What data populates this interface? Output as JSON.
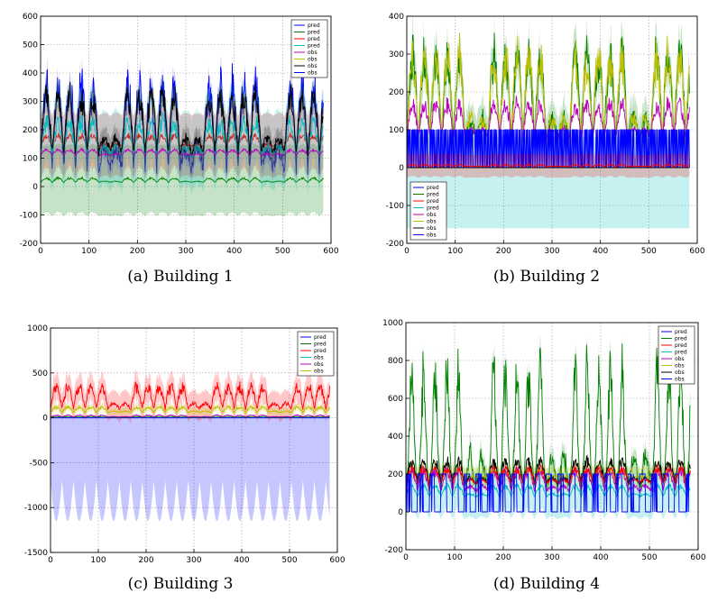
{
  "chart_data": [
    {
      "type": "line",
      "caption": "(a) Building 1",
      "xlim": [
        0,
        600
      ],
      "ylim": [
        -200,
        600
      ],
      "xticks": [
        0,
        100,
        200,
        300,
        400,
        500,
        600
      ],
      "yticks": [
        -200,
        -100,
        0,
        100,
        200,
        300,
        400,
        500,
        600
      ],
      "grid": true,
      "legend": {
        "placement": "top-right",
        "entries": [
          {
            "label": "pred",
            "color": "#0000ff"
          },
          {
            "label": "pred",
            "color": "#008000"
          },
          {
            "label": "pred",
            "color": "#ff0000"
          },
          {
            "label": "pred",
            "color": "#00bfbf"
          },
          {
            "label": "obs",
            "color": "#bf00bf"
          },
          {
            "label": "obs",
            "color": "#bfbf00"
          },
          {
            "label": "obs",
            "color": "#000000"
          },
          {
            "label": "obs",
            "color": "#0000ff"
          }
        ]
      },
      "n_points": 585,
      "series": [
        {
          "label": "pred",
          "color": "#0000ff",
          "base": 60,
          "amp": 300,
          "period": 24,
          "band": 40
        },
        {
          "label": "pred",
          "color": "#008000",
          "base": 15,
          "amp": 15,
          "period": 24,
          "band": 120
        },
        {
          "label": "pred",
          "color": "#ff0000",
          "base": 140,
          "amp": 40,
          "period": 24,
          "band": 110
        },
        {
          "label": "pred",
          "color": "#00bfbf",
          "base": 110,
          "amp": 120,
          "period": 24,
          "band": 130
        },
        {
          "label": "obs",
          "color": "#bf00bf",
          "base": 110,
          "amp": 20,
          "period": 24,
          "band": 0
        },
        {
          "label": "obs",
          "color": "#000000",
          "base": 120,
          "amp": 200,
          "period": 24,
          "band": 40
        }
      ]
    },
    {
      "type": "line",
      "caption": "(b) Building 2",
      "xlim": [
        0,
        600
      ],
      "ylim": [
        -200,
        400
      ],
      "xticks": [
        0,
        100,
        200,
        300,
        400,
        500,
        600
      ],
      "yticks": [
        -200,
        -100,
        0,
        100,
        200,
        300,
        400
      ],
      "grid": true,
      "legend": {
        "placement": "bottom-left",
        "entries": [
          {
            "label": "pred",
            "color": "#0000ff"
          },
          {
            "label": "pred",
            "color": "#008000"
          },
          {
            "label": "pred",
            "color": "#ff0000"
          },
          {
            "label": "pred",
            "color": "#00bfbf"
          },
          {
            "label": "obs",
            "color": "#bf00bf"
          },
          {
            "label": "obs",
            "color": "#bfbf00"
          },
          {
            "label": "obs",
            "color": "#000000"
          },
          {
            "label": "obs",
            "color": "#0000ff"
          }
        ]
      },
      "n_points": 585,
      "series": [
        {
          "label": "pred",
          "color": "#00bfbf",
          "base": 0,
          "amp": 0,
          "period": 24,
          "band": 120,
          "band_center": -40
        },
        {
          "label": "pred",
          "color": "#008000",
          "base": 70,
          "amp": 230,
          "period": 24,
          "band": 50
        },
        {
          "label": "obs",
          "color": "#bfbf00",
          "base": 70,
          "amp": 230,
          "period": 24,
          "band": 0
        },
        {
          "label": "pred",
          "color": "#bf00bf",
          "base": 80,
          "amp": 90,
          "period": 24,
          "band": 0
        },
        {
          "label": "pred",
          "color": "#0000ff",
          "base": 0,
          "amp": 100,
          "period": 3,
          "band": 0,
          "square": true
        },
        {
          "label": "pred",
          "color": "#ff0000",
          "base": 3,
          "amp": 5,
          "period": 24,
          "band": 30
        },
        {
          "label": "obs",
          "color": "#000000",
          "base": 0,
          "amp": 0,
          "period": 24,
          "band": 0
        }
      ]
    },
    {
      "type": "line",
      "caption": "(c) Building 3",
      "xlim": [
        0,
        600
      ],
      "ylim": [
        -1500,
        1000
      ],
      "xticks": [
        0,
        100,
        200,
        300,
        400,
        500,
        600
      ],
      "yticks": [
        -1500,
        -1000,
        -500,
        0,
        500,
        1000
      ],
      "grid": true,
      "legend": {
        "placement": "top-right",
        "entries": [
          {
            "label": "pred",
            "color": "#0000ff"
          },
          {
            "label": "pred",
            "color": "#008000"
          },
          {
            "label": "pred",
            "color": "#ff0000"
          },
          {
            "label": "obs",
            "color": "#00bfbf"
          },
          {
            "label": "obs",
            "color": "#bf00bf"
          },
          {
            "label": "obs",
            "color": "#bfbf00"
          }
        ]
      },
      "n_points": 585,
      "series": [
        {
          "label": "pred",
          "color": "#0000ff",
          "base": 0,
          "amp": 0,
          "period": 24,
          "band": 350,
          "band_center": -350,
          "band_amp": 450
        },
        {
          "label": "pred",
          "color": "#ff0000",
          "base": 100,
          "amp": 250,
          "period": 24,
          "band": 150
        },
        {
          "label": "obs",
          "color": "#bfbf00",
          "base": 60,
          "amp": 60,
          "period": 24,
          "band": 40
        },
        {
          "label": "obs",
          "color": "#008000",
          "base": 5,
          "amp": 10,
          "period": 24,
          "band": 0
        },
        {
          "label": "obs",
          "color": "#bf00bf",
          "base": 10,
          "amp": 20,
          "period": 24,
          "band": 0
        }
      ]
    },
    {
      "type": "line",
      "caption": "(d) Building 4",
      "xlim": [
        0,
        600
      ],
      "ylim": [
        -200,
        1000
      ],
      "xticks": [
        0,
        100,
        200,
        300,
        400,
        500,
        600
      ],
      "yticks": [
        -200,
        0,
        200,
        400,
        600,
        800,
        1000
      ],
      "grid": true,
      "legend": {
        "placement": "top-right",
        "entries": [
          {
            "label": "pred",
            "color": "#0000ff"
          },
          {
            "label": "pred",
            "color": "#008000"
          },
          {
            "label": "pred",
            "color": "#ff0000"
          },
          {
            "label": "pred",
            "color": "#00bfbf"
          },
          {
            "label": "obs",
            "color": "#bf00bf"
          },
          {
            "label": "obs",
            "color": "#bfbf00"
          },
          {
            "label": "obs",
            "color": "#000000"
          },
          {
            "label": "obs",
            "color": "#0000ff"
          }
        ]
      },
      "n_points": 585,
      "series": [
        {
          "label": "pred",
          "color": "#00bfbf",
          "base": 80,
          "amp": 60,
          "period": 24,
          "band": 120
        },
        {
          "label": "pred",
          "color": "#008000",
          "base": 160,
          "amp": 600,
          "period": 24,
          "band": 60,
          "spiky": true
        },
        {
          "label": "obs",
          "color": "#bfbf00",
          "base": 180,
          "amp": 40,
          "period": 24,
          "band": 50
        },
        {
          "label": "obs",
          "color": "#000000",
          "base": 150,
          "amp": 120,
          "period": 24,
          "band": 0
        },
        {
          "label": "obs",
          "color": "#bf00bf",
          "base": 110,
          "amp": 110,
          "period": 24,
          "band": 0
        },
        {
          "label": "pred",
          "color": "#ff0000",
          "base": 150,
          "amp": 80,
          "period": 24,
          "band": 0
        },
        {
          "label": "pred",
          "color": "#0000ff",
          "base": 0,
          "amp": 200,
          "period": 24,
          "band": 0,
          "square": true
        }
      ]
    }
  ]
}
